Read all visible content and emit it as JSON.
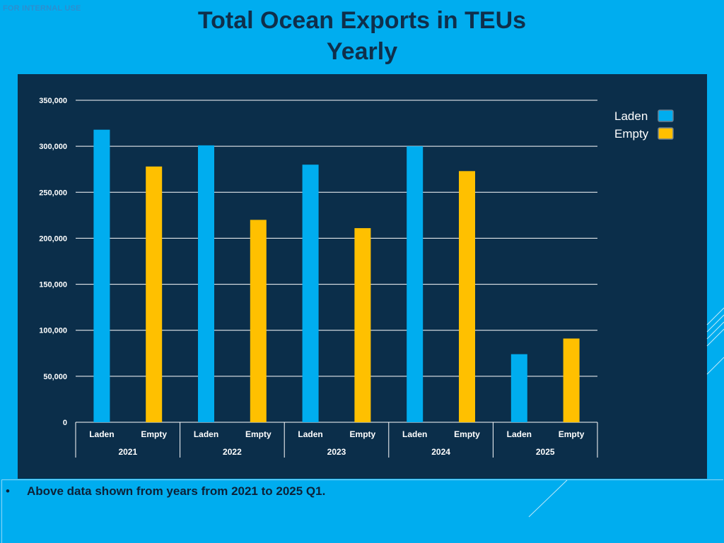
{
  "watermark": "FOR INTERNAL USE",
  "page": {
    "title_line1": "Total Ocean Exports in TEUs",
    "title_line2": "Yearly"
  },
  "note": {
    "bullet": "•",
    "text": "Above data shown from years from 2021 to 2025 Q1."
  },
  "colors": {
    "laden": "#00ADEF",
    "empty": "#FFC000",
    "panel": "#0B2E4A",
    "background": "#00ADEF",
    "gridline": "#FFFFFF"
  },
  "chart_data": {
    "type": "bar",
    "title": "Total Ocean Exports in TEUs Yearly",
    "xlabel": "",
    "ylabel": "",
    "ylim": [
      0,
      350000
    ],
    "y_ticks": [
      0,
      50000,
      100000,
      150000,
      200000,
      250000,
      300000,
      350000
    ],
    "y_tick_labels": [
      "0",
      "50,000",
      "100,000",
      "150,000",
      "200,000",
      "250,000",
      "300,000",
      "350,000"
    ],
    "grid": true,
    "legend_position": "top-right",
    "groups": [
      {
        "year": "2021",
        "categories": [
          "Laden",
          "Empty"
        ],
        "values": [
          318000,
          278000
        ]
      },
      {
        "year": "2022",
        "categories": [
          "Laden",
          "Empty"
        ],
        "values": [
          301000,
          220000
        ]
      },
      {
        "year": "2023",
        "categories": [
          "Laden",
          "Empty"
        ],
        "values": [
          280000,
          211000
        ]
      },
      {
        "year": "2024",
        "categories": [
          "Laden",
          "Empty"
        ],
        "values": [
          300000,
          273000
        ]
      },
      {
        "year": "2025",
        "categories": [
          "Laden",
          "Empty"
        ],
        "values": [
          74000,
          91000
        ]
      }
    ],
    "series": [
      {
        "name": "Laden",
        "values": [
          318000,
          301000,
          280000,
          300000,
          74000
        ]
      },
      {
        "name": "Empty",
        "values": [
          278000,
          220000,
          211000,
          273000,
          91000
        ]
      }
    ],
    "legend": [
      "Laden",
      "Empty"
    ]
  }
}
